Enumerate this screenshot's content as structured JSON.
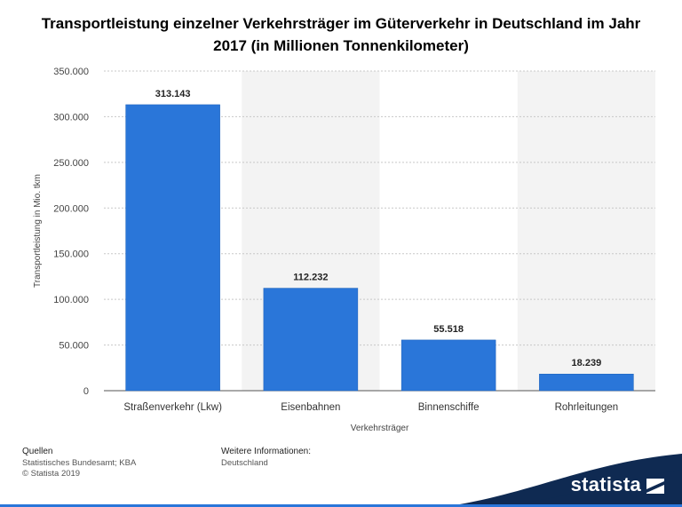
{
  "title": "Transportleistung einzelner Verkehrsträger im Güterverkehr in Deutschland im Jahr 2017 (in Millionen Tonnenkilometer)",
  "chart_data": {
    "type": "bar",
    "categories": [
      "Straßenverkehr (Lkw)",
      "Eisenbahnen",
      "Binnenschiffe",
      "Rohrleitungen"
    ],
    "values": [
      313143,
      112232,
      55518,
      18239
    ],
    "value_labels": [
      "313.143",
      "112.232",
      "55.518",
      "18.239"
    ],
    "yticks": [
      "0",
      "50.000",
      "100.000",
      "150.000",
      "200.000",
      "250.000",
      "300.000",
      "350.000"
    ],
    "ylim": [
      0,
      350000
    ],
    "xlabel": "Verkehrsträger",
    "ylabel": "Transportleistung in Mio. tkm",
    "grid": true,
    "bar_color": "#2a76d9"
  },
  "footer": {
    "sources_heading": "Quellen",
    "sources_line1": "Statistisches Bundesamt; KBA",
    "sources_line2": "© Statista 2019",
    "info_heading": "Weitere Informationen:",
    "info_line1": "Deutschland"
  },
  "brand": {
    "name": "statista",
    "color": "#0f2a52"
  }
}
